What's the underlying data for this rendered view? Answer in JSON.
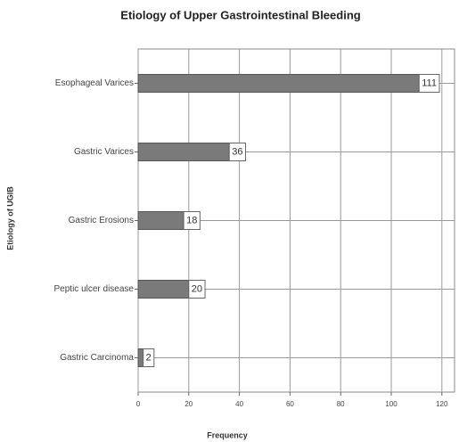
{
  "chart_data": {
    "type": "barh",
    "title": "Etiology of Upper Gastrointestinal Bleeding",
    "xlabel": "Frequency",
    "ylabel": "Etiology of UGIB",
    "categories": [
      "Esophageal Varices",
      "Gastric Varices",
      "Gastric Erosions",
      "Peptic ulcer disease",
      "Gastric Carcinoma"
    ],
    "values": [
      111,
      36,
      18,
      20,
      2
    ],
    "color": "#7a7a7a",
    "xlim": [
      0,
      125
    ],
    "xticks": [
      0,
      20,
      40,
      60,
      80,
      100,
      120
    ],
    "grid": true
  }
}
